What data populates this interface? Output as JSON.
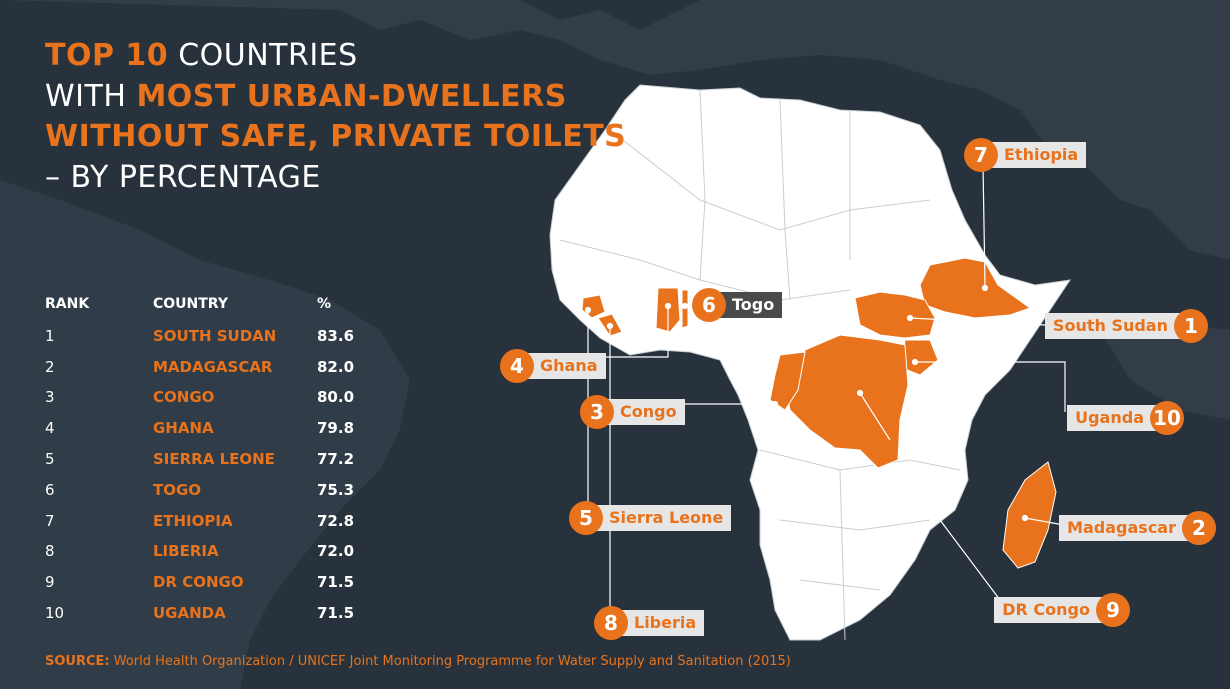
{
  "title": {
    "line1_highlight": "TOP 10",
    "line1_rest": " COUNTRIES",
    "line2_plain": "WITH ",
    "line2_highlight": "MOST URBAN-DWELLERS",
    "line3_highlight": "WITHOUT SAFE, PRIVATE TOILETS",
    "line4_plain": "– BY PERCENTAGE"
  },
  "table": {
    "headers": {
      "rank": "RANK",
      "country": "COUNTRY",
      "value": "%"
    },
    "rows": [
      {
        "rank": "1",
        "country": "SOUTH SUDAN",
        "value": "83.6"
      },
      {
        "rank": "2",
        "country": "MADAGASCAR",
        "value": "82.0"
      },
      {
        "rank": "3",
        "country": "CONGO",
        "value": "80.0"
      },
      {
        "rank": "4",
        "country": "GHANA",
        "value": "79.8"
      },
      {
        "rank": "5",
        "country": "SIERRA LEONE",
        "value": "77.2"
      },
      {
        "rank": "6",
        "country": "TOGO",
        "value": "75.3"
      },
      {
        "rank": "7",
        "country": "ETHIOPIA",
        "value": "72.8"
      },
      {
        "rank": "8",
        "country": "LIBERIA",
        "value": "72.0"
      },
      {
        "rank": "9",
        "country": "DR CONGO",
        "value": "71.5"
      },
      {
        "rank": "10",
        "country": "UGANDA",
        "value": "71.5"
      }
    ]
  },
  "callouts": {
    "ethiopia": {
      "num": "7",
      "label": "Ethiopia"
    },
    "togo": {
      "num": "6",
      "label": "Togo"
    },
    "south_sudan": {
      "num": "1",
      "label": "South Sudan"
    },
    "ghana": {
      "num": "4",
      "label": "Ghana"
    },
    "congo": {
      "num": "3",
      "label": "Congo"
    },
    "uganda": {
      "num": "10",
      "label": "Uganda"
    },
    "sierra_leone": {
      "num": "5",
      "label": "Sierra Leone"
    },
    "madagascar": {
      "num": "2",
      "label": "Madagascar"
    },
    "dr_congo": {
      "num": "9",
      "label": "DR Congo"
    },
    "liberia": {
      "num": "8",
      "label": "Liberia"
    }
  },
  "source": {
    "prefix": "SOURCE:",
    "text": " World Health Organization / UNICEF Joint Monitoring Programme for Water Supply and Sanitation (2015)"
  },
  "colors": {
    "background": "#27323d",
    "accent": "#e8731c",
    "land": "#ffffff",
    "label_box": "#e6e6e6",
    "label_box_dark": "#4a4a4a"
  }
}
